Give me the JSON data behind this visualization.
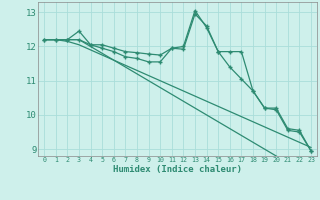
{
  "xlabel": "Humidex (Indice chaleur)",
  "x_values": [
    0,
    1,
    2,
    3,
    4,
    5,
    6,
    7,
    8,
    9,
    10,
    11,
    12,
    13,
    14,
    15,
    16,
    17,
    18,
    19,
    20,
    21,
    22,
    23
  ],
  "line1": [
    12.2,
    12.2,
    12.2,
    12.45,
    12.05,
    12.05,
    11.95,
    11.85,
    11.82,
    11.78,
    11.75,
    11.95,
    11.92,
    12.95,
    12.6,
    11.85,
    11.85,
    11.85,
    10.7,
    10.2,
    10.15,
    9.55,
    9.5,
    8.95
  ],
  "line2": [
    12.2,
    12.2,
    12.2,
    12.2,
    12.05,
    11.95,
    11.85,
    11.7,
    11.65,
    11.55,
    11.55,
    11.95,
    12.0,
    13.05,
    12.55,
    11.85,
    11.4,
    11.05,
    10.7,
    10.2,
    10.2,
    9.6,
    9.55,
    8.95
  ],
  "line3": [
    12.2,
    12.2,
    12.15,
    12.05,
    11.9,
    11.75,
    11.6,
    11.45,
    11.3,
    11.15,
    11.0,
    10.85,
    10.7,
    10.55,
    10.4,
    10.25,
    10.1,
    9.95,
    9.8,
    9.65,
    9.5,
    9.35,
    9.2,
    9.05
  ],
  "line4": [
    12.2,
    12.2,
    12.2,
    12.2,
    12.0,
    11.8,
    11.6,
    11.4,
    11.2,
    11.0,
    10.8,
    10.6,
    10.4,
    10.2,
    10.0,
    9.8,
    9.6,
    9.4,
    9.2,
    9.0,
    8.8,
    8.6,
    8.4,
    8.2
  ],
  "line_color": "#2e8b72",
  "bg_color": "#cef0eb",
  "grid_color": "#aaddda",
  "ylim": [
    8.8,
    13.3
  ],
  "xlim": [
    -0.5,
    23.5
  ],
  "yticks": [
    9,
    10,
    11,
    12,
    13
  ]
}
